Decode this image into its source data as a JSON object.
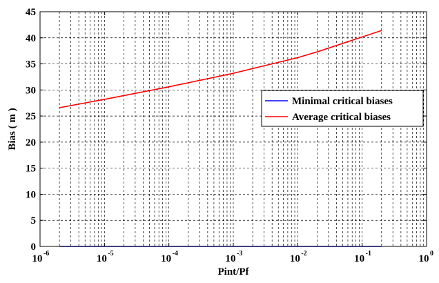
{
  "chart_data": {
    "type": "line",
    "xscale": "log",
    "xlim": [
      1e-06,
      1
    ],
    "ylim": [
      0,
      45
    ],
    "xticks": [
      {
        "base": "10",
        "exp": "-6",
        "value": 1e-06
      },
      {
        "base": "10",
        "exp": "-5",
        "value": 1e-05
      },
      {
        "base": "10",
        "exp": "-4",
        "value": 0.0001
      },
      {
        "base": "10",
        "exp": "-3",
        "value": 0.001
      },
      {
        "base": "10",
        "exp": "-2",
        "value": 0.01
      },
      {
        "base": "10",
        "exp": "-1",
        "value": 0.1
      },
      {
        "base": "10",
        "exp": "0",
        "value": 1
      }
    ],
    "yticks": [
      "0",
      "5",
      "10",
      "15",
      "20",
      "25",
      "30",
      "35",
      "40",
      "45"
    ],
    "xlabel": "Pint/Pf",
    "ylabel": "Bias ( m )",
    "grid": true,
    "legend_position": "center-right",
    "series": [
      {
        "name": "Minimal critical biases",
        "color": "#0000ff",
        "x": [
          2e-06,
          1e-05,
          0.0001,
          0.001,
          0.01,
          0.02,
          0.2
        ],
        "y": [
          0,
          0,
          0,
          0,
          0,
          0,
          0
        ]
      },
      {
        "name": "Average critical biases",
        "color": "#ff0000",
        "x": [
          2e-06,
          1e-05,
          0.0001,
          0.001,
          0.01,
          0.02,
          0.2
        ],
        "y": [
          26.6,
          28.2,
          30.6,
          33.2,
          36.2,
          37.3,
          41.4
        ]
      }
    ]
  }
}
